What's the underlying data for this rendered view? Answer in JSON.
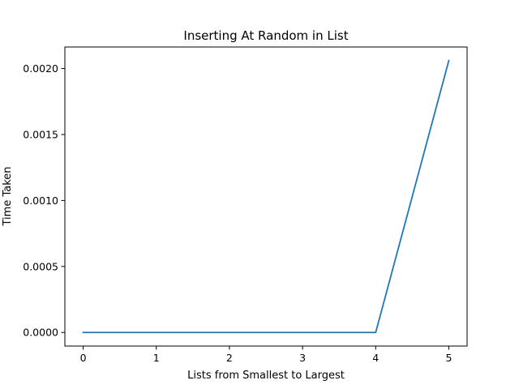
{
  "chart_data": {
    "type": "line",
    "title": "Inserting At Random in List",
    "xlabel": "Lists from Smallest to Largest",
    "ylabel": "Time Taken",
    "series": [
      {
        "x": [
          0,
          1,
          2,
          3,
          4,
          5
        ],
        "values": [
          0.0,
          0.0,
          0.0,
          0.0,
          0.0,
          0.00206
        ],
        "color": "#1f77b4"
      }
    ],
    "xlim": [
      -0.25,
      5.25
    ],
    "ylim": [
      -0.000103,
      0.002163
    ],
    "xticks": [
      0,
      1,
      2,
      3,
      4,
      5
    ],
    "xtick_labels": [
      "0",
      "1",
      "2",
      "3",
      "4",
      "5"
    ],
    "yticks": [
      0.0,
      0.0005,
      0.001,
      0.0015,
      0.002
    ],
    "ytick_labels": [
      "0.0000",
      "0.0005",
      "0.0010",
      "0.0015",
      "0.0020"
    ],
    "grid": false,
    "legend": "none"
  }
}
